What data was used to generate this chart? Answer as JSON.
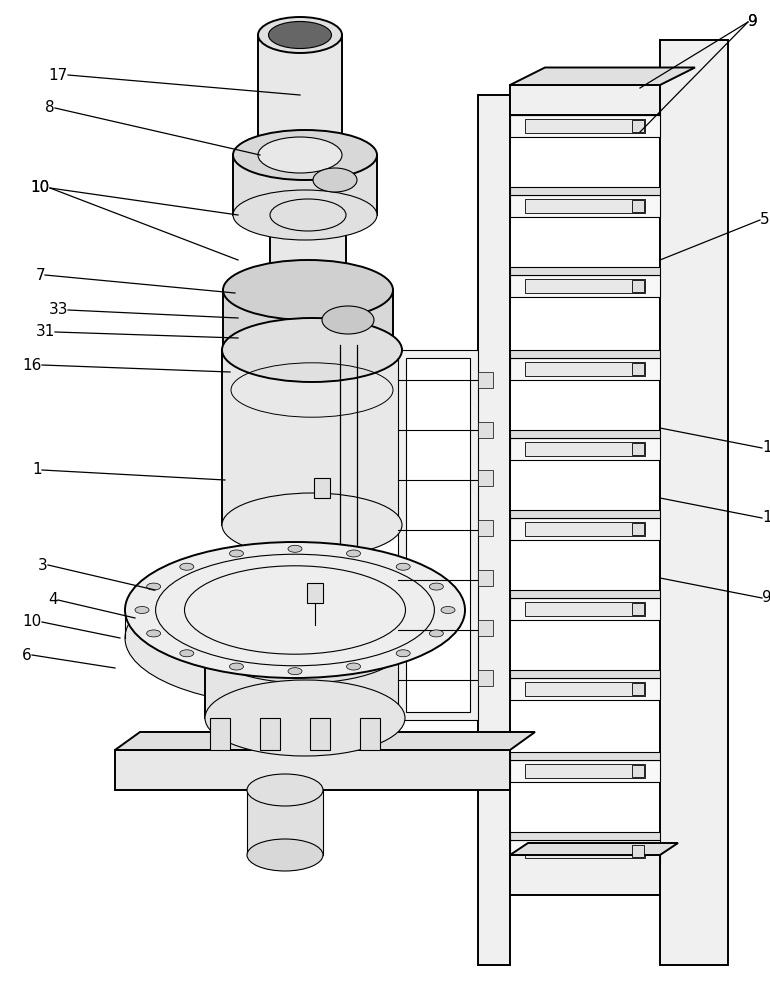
{
  "bg_color": "#ffffff",
  "line_color": "#000000",
  "fill_light": "#f0f0f0",
  "fill_mid": "#e0e0e0",
  "fill_dark": "#c8c8c8",
  "lw_main": 1.4,
  "lw_thin": 0.8,
  "lw_leader": 0.9,
  "label_fs": 11,
  "figw": 7.7,
  "figh": 10.0,
  "dpi": 100
}
